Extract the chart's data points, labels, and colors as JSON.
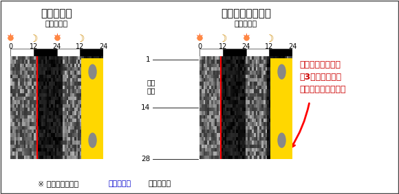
{
  "title_left": "対照マウス",
  "title_right": "フィブレート投与",
  "subtitle": "時刻（時）",
  "time_labels": [
    "0",
    "12",
    "24",
    "12",
    "24"
  ],
  "annotation_text": "活動開始時刻が、\n約3時間早まった\n（早起きになった）",
  "bottom_note_part1": "※ 色の黒い部分が",
  "bottom_note_highlight": "活動時間帯",
  "bottom_note_part2": "を意味する",
  "annotation_color": "#cc0000",
  "highlight_color": "#0000cc",
  "day_labels": [
    "1",
    "14",
    "28"
  ],
  "touwayo_label": "投与\n日数",
  "jp_font": "Noto Sans CJK JP",
  "jp_font_alt": "IPAexGothic"
}
